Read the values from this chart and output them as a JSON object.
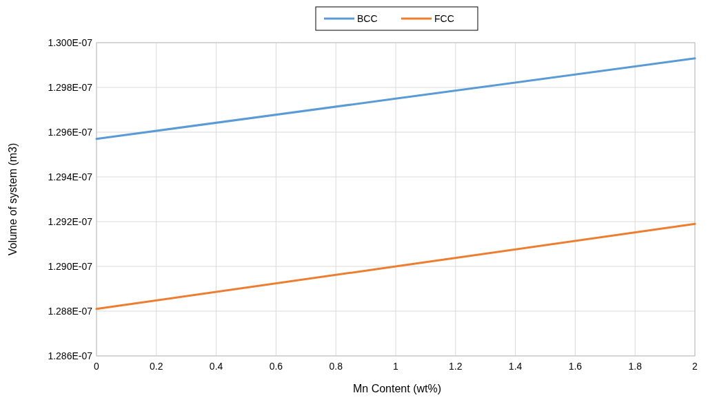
{
  "chart_data": {
    "type": "line",
    "xlabel": "Mn Content (wt%)",
    "ylabel": "Volume of system (m3)",
    "xlim": [
      0,
      2
    ],
    "xticks": [
      0,
      0.2,
      0.4,
      0.6,
      0.8,
      1,
      1.2,
      1.4,
      1.6,
      1.8,
      2
    ],
    "ylim": [
      1.286e-07,
      1.3e-07
    ],
    "yticks": [
      {
        "value": 1.286e-07,
        "label": "1.286E-07"
      },
      {
        "value": 1.288e-07,
        "label": "1.288E-07"
      },
      {
        "value": 1.29e-07,
        "label": "1.290E-07"
      },
      {
        "value": 1.292e-07,
        "label": "1.292E-07"
      },
      {
        "value": 1.294e-07,
        "label": "1.294E-07"
      },
      {
        "value": 1.296e-07,
        "label": "1.296E-07"
      },
      {
        "value": 1.298e-07,
        "label": "1.298E-07"
      },
      {
        "value": 1.3e-07,
        "label": "1.300E-07"
      }
    ],
    "x": [
      0,
      1,
      2
    ],
    "series": [
      {
        "name": "BCC",
        "color": "#5b9bd5",
        "values": [
          1.2957e-07,
          1.2975e-07,
          1.2993e-07
        ]
      },
      {
        "name": "FCC",
        "color": "#ed7d31",
        "values": [
          1.2881e-07,
          1.29e-07,
          1.2919e-07
        ]
      }
    ],
    "grid": true,
    "legend": "top",
    "marker": "none",
    "line_style": "solid"
  }
}
